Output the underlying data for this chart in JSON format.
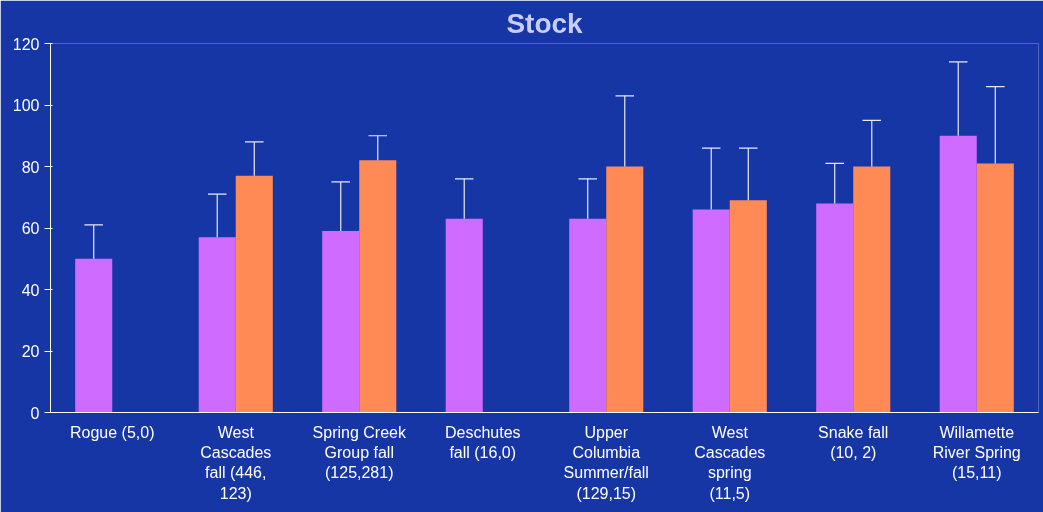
{
  "chart_data": {
    "type": "bar",
    "title": "Stock",
    "categories": [
      "Rogue (5,0)",
      "West Cascades fall (446, 123)",
      "Spring Creek Group fall (125,281)",
      "Deschutes fall (16,0)",
      "Upper Columbia Summer/fall (129,15)",
      "West Cascades spring (11,5)",
      "Snake fall (10, 2)",
      "Willamette River Spring (15,11)"
    ],
    "series": [
      {
        "color": "#cf6cff",
        "values": [
          50,
          57,
          59,
          63,
          63,
          66,
          68,
          90
        ],
        "errors": [
          [
            50,
            61
          ],
          [
            57,
            71
          ],
          [
            59,
            75
          ],
          [
            63,
            76
          ],
          [
            63,
            76
          ],
          [
            66,
            86
          ],
          [
            68,
            81
          ],
          [
            90,
            114
          ]
        ]
      },
      {
        "color": "#ff8a55",
        "values": [
          null,
          77,
          82,
          null,
          80,
          69,
          80,
          81
        ],
        "errors": [
          null,
          [
            77,
            88
          ],
          [
            82,
            90
          ],
          null,
          [
            80,
            103
          ],
          [
            69,
            86
          ],
          [
            80,
            95
          ],
          [
            81,
            106
          ]
        ]
      }
    ],
    "ylim": [
      0,
      120
    ],
    "yticks": [
      0,
      20,
      40,
      60,
      80,
      100,
      120
    ],
    "grid": false
  }
}
